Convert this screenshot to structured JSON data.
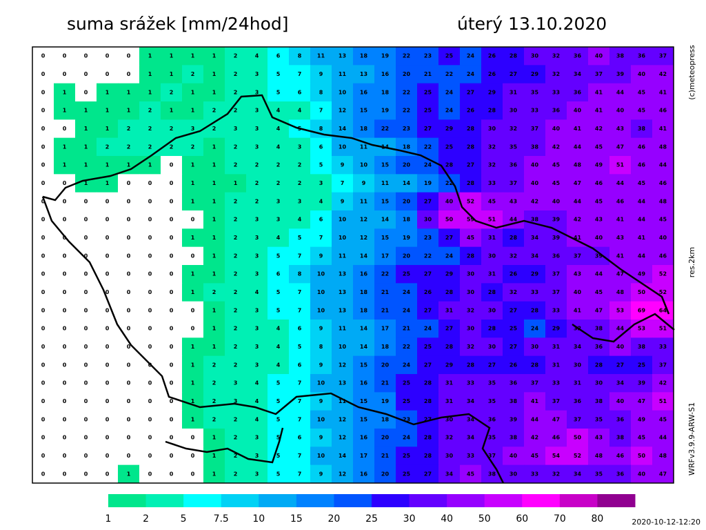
{
  "title": "suma srážek [mm/24hod]",
  "date": "úterý 13.10.2020",
  "credit": "(c)meteopress",
  "resolution": "res.2km",
  "model": "WRFv3.9.9-ARW-S1",
  "timestamp": "2020-10-12-12:20",
  "colorbar": {
    "levels": [
      1,
      2,
      5,
      7.5,
      10,
      15,
      20,
      25,
      30,
      40,
      50,
      60,
      70,
      80
    ],
    "colors": [
      "#00e68c",
      "#00f0b4",
      "#00ffff",
      "#00d2f5",
      "#00aaf5",
      "#0082ff",
      "#0055ff",
      "#2d00ff",
      "#6400ff",
      "#9600ff",
      "#c800ff",
      "#ff00ff",
      "#c800c8",
      "#900090"
    ]
  },
  "grid": {
    "rows": [
      [
        0,
        0,
        0,
        0,
        0,
        1,
        1,
        1,
        1,
        2,
        4,
        6,
        8,
        11,
        13,
        18,
        19,
        22,
        23,
        25,
        24,
        26,
        28,
        30,
        32,
        36,
        40,
        38,
        36,
        37
      ],
      [
        0,
        0,
        0,
        0,
        0,
        1,
        1,
        2,
        1,
        2,
        3,
        5,
        7,
        9,
        11,
        13,
        16,
        20,
        21,
        22,
        24,
        26,
        27,
        29,
        32,
        34,
        37,
        39,
        40,
        42
      ],
      [
        0,
        1,
        0,
        1,
        1,
        1,
        2,
        1,
        1,
        2,
        3,
        5,
        6,
        8,
        10,
        16,
        18,
        22,
        25,
        24,
        27,
        29,
        31,
        35,
        33,
        36,
        41,
        44,
        45,
        41
      ],
      [
        0,
        1,
        1,
        1,
        1,
        2,
        1,
        1,
        2,
        2,
        3,
        4,
        4,
        7,
        12,
        15,
        19,
        22,
        25,
        24,
        26,
        28,
        30,
        33,
        36,
        40,
        41,
        40,
        45,
        46
      ],
      [
        0,
        0,
        1,
        1,
        2,
        2,
        2,
        3,
        2,
        3,
        3,
        4,
        5,
        8,
        14,
        18,
        22,
        23,
        27,
        29,
        28,
        30,
        32,
        37,
        40,
        41,
        42,
        43,
        38,
        41
      ],
      [
        0,
        1,
        1,
        2,
        2,
        2,
        2,
        2,
        1,
        2,
        3,
        4,
        3,
        6,
        10,
        11,
        14,
        18,
        22,
        25,
        28,
        32,
        35,
        38,
        42,
        44,
        45,
        47,
        46,
        48
      ],
      [
        0,
        1,
        1,
        1,
        1,
        1,
        0,
        1,
        1,
        2,
        2,
        2,
        2,
        5,
        9,
        10,
        15,
        20,
        24,
        28,
        27,
        32,
        36,
        40,
        45,
        48,
        49,
        51,
        46,
        44
      ],
      [
        0,
        0,
        1,
        1,
        0,
        0,
        0,
        1,
        1,
        1,
        2,
        2,
        2,
        3,
        7,
        9,
        11,
        14,
        19,
        22,
        28,
        33,
        37,
        40,
        45,
        47,
        46,
        44,
        45,
        46
      ],
      [
        0,
        0,
        0,
        0,
        0,
        0,
        0,
        1,
        1,
        2,
        2,
        3,
        3,
        4,
        9,
        11,
        15,
        20,
        27,
        40,
        52,
        45,
        43,
        42,
        40,
        44,
        45,
        46,
        44,
        48
      ],
      [
        0,
        0,
        0,
        0,
        0,
        0,
        0,
        0,
        1,
        2,
        3,
        3,
        4,
        6,
        10,
        12,
        14,
        18,
        30,
        50,
        59,
        51,
        44,
        38,
        39,
        42,
        43,
        41,
        44,
        45
      ],
      [
        0,
        0,
        0,
        0,
        0,
        0,
        0,
        1,
        1,
        2,
        3,
        4,
        5,
        7,
        10,
        12,
        15,
        19,
        23,
        27,
        45,
        31,
        28,
        34,
        39,
        41,
        40,
        43,
        41,
        40
      ],
      [
        0,
        0,
        0,
        0,
        0,
        0,
        0,
        0,
        1,
        2,
        3,
        5,
        7,
        9,
        11,
        14,
        17,
        20,
        22,
        24,
        28,
        30,
        32,
        34,
        36,
        37,
        39,
        41,
        44,
        46
      ],
      [
        0,
        0,
        0,
        0,
        0,
        0,
        0,
        1,
        1,
        2,
        3,
        6,
        8,
        10,
        13,
        16,
        22,
        25,
        27,
        29,
        30,
        31,
        26,
        29,
        37,
        43,
        44,
        47,
        49,
        52
      ],
      [
        0,
        0,
        0,
        0,
        0,
        0,
        0,
        1,
        2,
        2,
        4,
        5,
        7,
        10,
        13,
        18,
        21,
        24,
        26,
        28,
        30,
        28,
        32,
        33,
        37,
        40,
        45,
        48,
        50,
        52
      ],
      [
        0,
        0,
        0,
        0,
        0,
        0,
        0,
        0,
        1,
        2,
        3,
        5,
        7,
        10,
        13,
        18,
        21,
        24,
        27,
        31,
        32,
        30,
        27,
        28,
        33,
        41,
        47,
        53,
        69,
        64
      ],
      [
        0,
        0,
        0,
        0,
        0,
        0,
        0,
        0,
        1,
        2,
        3,
        4,
        6,
        9,
        11,
        14,
        17,
        21,
        24,
        27,
        30,
        28,
        25,
        24,
        29,
        32,
        38,
        44,
        53,
        51
      ],
      [
        0,
        0,
        0,
        0,
        0,
        0,
        0,
        1,
        1,
        2,
        3,
        4,
        5,
        8,
        10,
        14,
        18,
        22,
        25,
        28,
        32,
        30,
        27,
        30,
        31,
        34,
        36,
        40,
        38,
        33
      ],
      [
        0,
        0,
        0,
        0,
        0,
        0,
        0,
        1,
        2,
        2,
        3,
        4,
        6,
        9,
        12,
        15,
        20,
        24,
        27,
        29,
        28,
        27,
        26,
        28,
        31,
        30,
        28,
        27,
        25,
        37
      ],
      [
        0,
        0,
        0,
        0,
        0,
        0,
        0,
        1,
        2,
        3,
        4,
        5,
        7,
        10,
        13,
        16,
        21,
        25,
        28,
        31,
        33,
        35,
        36,
        37,
        33,
        31,
        30,
        34,
        39,
        42
      ],
      [
        0,
        0,
        0,
        0,
        0,
        0,
        0,
        1,
        2,
        3,
        4,
        5,
        7,
        9,
        11,
        15,
        19,
        25,
        28,
        31,
        34,
        35,
        38,
        41,
        37,
        36,
        38,
        40,
        47,
        51
      ],
      [
        0,
        0,
        0,
        0,
        0,
        0,
        0,
        1,
        2,
        2,
        4,
        5,
        7,
        10,
        12,
        15,
        18,
        23,
        27,
        30,
        34,
        36,
        39,
        44,
        47,
        37,
        35,
        36,
        49,
        45
      ],
      [
        0,
        0,
        0,
        0,
        0,
        0,
        0,
        0,
        1,
        2,
        3,
        5,
        6,
        9,
        12,
        16,
        20,
        24,
        28,
        32,
        34,
        35,
        38,
        42,
        46,
        50,
        43,
        38,
        45,
        44
      ],
      [
        0,
        0,
        0,
        0,
        0,
        0,
        0,
        0,
        1,
        2,
        3,
        5,
        7,
        10,
        14,
        17,
        21,
        25,
        28,
        30,
        33,
        37,
        40,
        45,
        54,
        52,
        48,
        46,
        50,
        48
      ],
      [
        0,
        0,
        0,
        0,
        1,
        0,
        0,
        0,
        1,
        2,
        3,
        5,
        7,
        9,
        12,
        16,
        20,
        25,
        27,
        34,
        45,
        38,
        30,
        33,
        32,
        34,
        35,
        36,
        40,
        47
      ]
    ]
  }
}
